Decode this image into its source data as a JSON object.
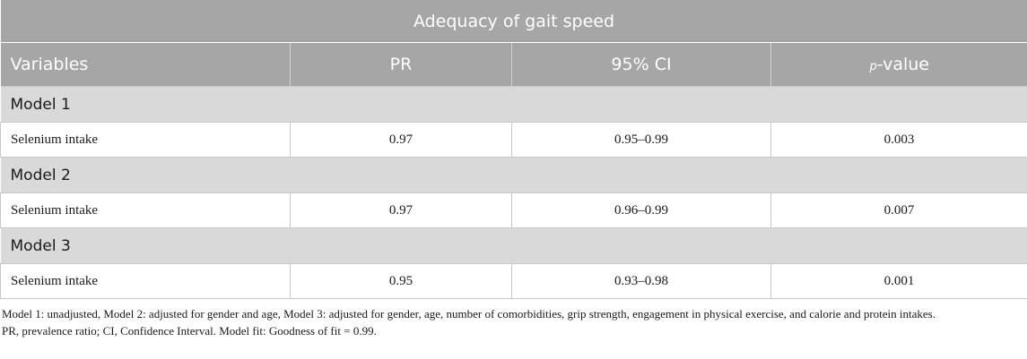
{
  "table": {
    "title": "Adequacy of gait speed",
    "headers": {
      "variables": "Variables",
      "pr": "PR",
      "ci": "95% CI",
      "p_prefix": "p",
      "p_suffix": "-value"
    },
    "models": [
      {
        "label": "Model 1",
        "variable": "Selenium intake",
        "pr": "0.97",
        "ci": "0.95–0.99",
        "p": "0.003"
      },
      {
        "label": "Model 2",
        "variable": "Selenium intake",
        "pr": "0.97",
        "ci": "0.96–0.99",
        "p": "0.007"
      },
      {
        "label": "Model 3",
        "variable": "Selenium intake",
        "pr": "0.95",
        "ci": "0.93–0.98",
        "p": "0.001"
      }
    ]
  },
  "footnotes": {
    "line1": "Model 1: unadjusted, Model 2: adjusted for gender and age, Model 3: adjusted for gender, age, number of comorbidities, grip strength, engagement in physical exercise, and calorie and protein intakes.",
    "line2": "PR, prevalence ratio; CI, Confidence Interval. Model fit: Goodness of fit = 0.99."
  }
}
